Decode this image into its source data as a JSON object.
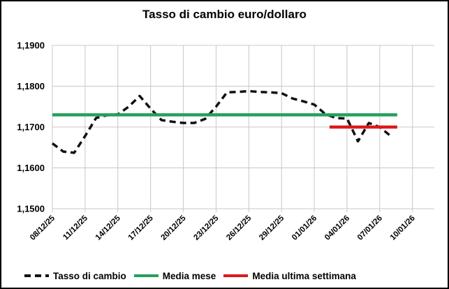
{
  "chart_data": {
    "type": "line",
    "title": "Tasso di cambio euro/dollaro",
    "ylim": [
      1.15,
      1.19
    ],
    "y_tick_values": [
      1.15,
      1.16,
      1.17,
      1.18,
      1.19
    ],
    "y_tick_labels": [
      "1,1500",
      "1,1600",
      "1,1700",
      "1,1800",
      "1,1900"
    ],
    "x_tick_days": [
      0,
      3,
      6,
      9,
      12,
      15,
      18,
      21,
      24,
      27,
      30,
      33
    ],
    "x_tick_labels": [
      "08/12/25",
      "11/12/25",
      "14/12/25",
      "17/12/25",
      "20/12/25",
      "23/12/25",
      "26/12/25",
      "29/12/25",
      "01/01/26",
      "04/01/26",
      "07/01/26",
      "10/01/26"
    ],
    "x_axis_days_total": 35,
    "grid": true,
    "legend_position": "bottom",
    "series": [
      {
        "name": "Tasso di cambio",
        "kind": "line",
        "style": "dashed",
        "color": "#111111",
        "dates": [
          "08/12/25",
          "09/12/25",
          "10/12/25",
          "11/12/25",
          "12/12/25",
          "13/12/25",
          "14/12/25",
          "15/12/25",
          "16/12/25",
          "17/12/25",
          "18/12/25",
          "19/12/25",
          "20/12/25",
          "21/12/25",
          "22/12/25",
          "23/12/25",
          "24/12/25",
          "25/12/25",
          "26/12/25",
          "27/12/25",
          "28/12/25",
          "29/12/25",
          "30/12/25",
          "31/12/25",
          "01/01/26",
          "02/01/26",
          "03/01/26",
          "04/01/26",
          "05/01/26",
          "06/01/26",
          "07/01/26",
          "08/01/26"
        ],
        "values": [
          1.166,
          1.164,
          1.1637,
          1.1678,
          1.1722,
          1.1729,
          1.1731,
          1.175,
          1.1776,
          1.1745,
          1.1717,
          1.1713,
          1.171,
          1.171,
          1.172,
          1.175,
          1.1785,
          1.1786,
          1.1788,
          1.1786,
          1.1785,
          1.1783,
          1.177,
          1.1763,
          1.1755,
          1.1732,
          1.1722,
          1.1721,
          1.1665,
          1.171,
          1.17,
          1.1678
        ]
      },
      {
        "name": "Media mese",
        "kind": "hline",
        "style": "solid",
        "color": "#22A05C",
        "value": 1.173,
        "day_start": 0,
        "day_end": 31.6
      },
      {
        "name": "Media ultima settimana",
        "kind": "hline",
        "style": "solid",
        "color": "#DC1919",
        "value": 1.17,
        "day_start": 25.4,
        "day_end": 31.6
      }
    ]
  },
  "legend": {
    "items": [
      {
        "label": "Tasso di cambio",
        "color": "#111111",
        "style": "dashed"
      },
      {
        "label": "Media mese",
        "color": "#22A05C",
        "style": "solid"
      },
      {
        "label": "Media ultima settimana",
        "color": "#DC1919",
        "style": "solid"
      }
    ]
  },
  "colors": {
    "grid": "#C8C8C8",
    "axis_text": "#000000",
    "background": "#FFFFFF",
    "border": "#000000"
  }
}
